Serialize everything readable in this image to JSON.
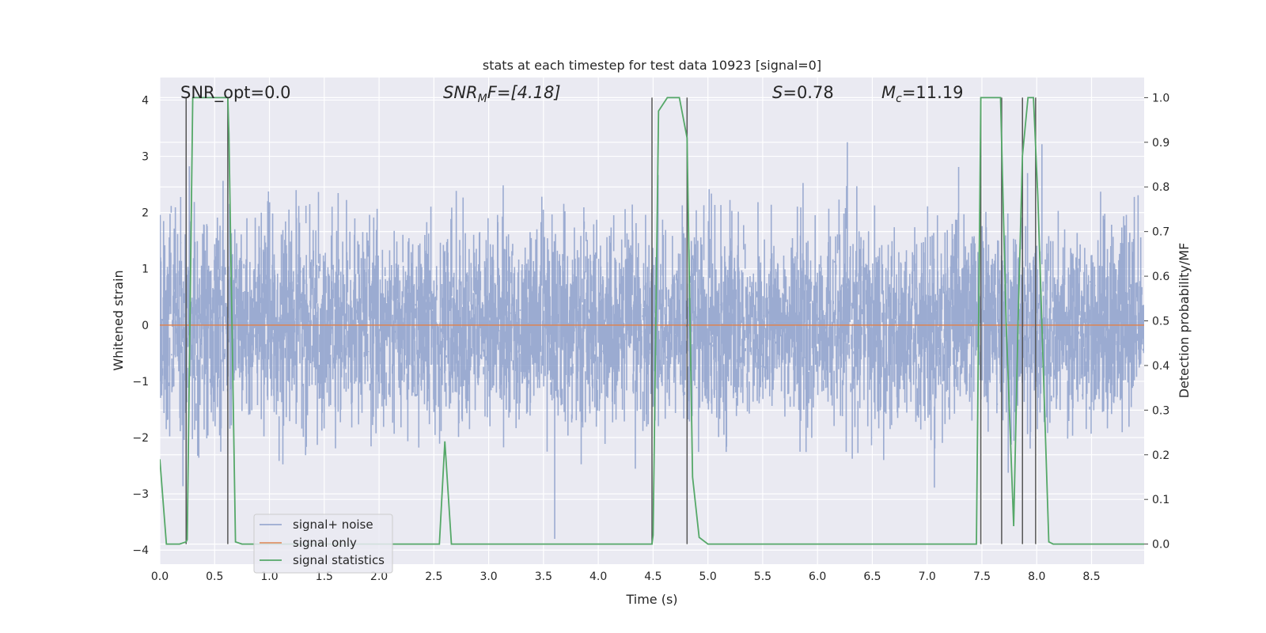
{
  "chart_data": {
    "type": "line",
    "title": "stats at each timestep for test data 10923 [signal=0]",
    "xlabel": "Time (s)",
    "ylabel": "Whitened strain",
    "ylabel_right": "Detection probability/MF",
    "xlim": [
      0.0,
      8.98
    ],
    "ylim": [
      -4.25,
      4.4
    ],
    "ylim_right": [
      -0.045,
      1.045
    ],
    "x_ticks": [
      "0.0",
      "0.5",
      "1.0",
      "1.5",
      "2.0",
      "2.5",
      "3.0",
      "3.5",
      "4.0",
      "4.5",
      "5.0",
      "5.5",
      "6.0",
      "6.5",
      "7.0",
      "7.5",
      "8.0",
      "8.5"
    ],
    "y_ticks": [
      "4",
      "3",
      "2",
      "1",
      "0",
      "−1",
      "−2",
      "−3",
      "−4"
    ],
    "y_right_ticks": [
      "1.0",
      "0.9",
      "0.8",
      "0.7",
      "0.6",
      "0.5",
      "0.4",
      "0.3",
      "0.2",
      "0.1",
      "0.0"
    ],
    "annotations": {
      "snr_opt": "SNR_opt=0.0",
      "snr_mf_label": "SNR",
      "snr_mf_sub": "M",
      "snr_mf_rest": "F=[4.18]",
      "s_label": "S",
      "s_rest": "=0.78",
      "mc_label": "M",
      "mc_sub": "c",
      "mc_rest": "=11.19"
    },
    "legend": {
      "position": "lower-left",
      "entries": [
        "signal+ noise",
        "signal only",
        "signal statistics"
      ]
    },
    "colors": {
      "noise": "#8da0cb",
      "signal": "#dd8452",
      "stats": "#55a868",
      "event_lines": "#555555",
      "plot_bg": "#eaeaf2",
      "grid": "#ffffff"
    },
    "series": [
      {
        "name": "signal+ noise",
        "description": "dense whitened noise band",
        "noise_sigma": 0.85,
        "range_min": -3.8,
        "range_max": 3.5
      },
      {
        "name": "signal only",
        "x": [
          0.0,
          8.98
        ],
        "y": [
          0.0,
          0.0
        ]
      },
      {
        "name": "signal statistics",
        "x": [
          0.0,
          0.06,
          0.18,
          0.24,
          0.25,
          0.3,
          0.62,
          0.63,
          0.69,
          0.75,
          1.2,
          2.0,
          2.4,
          2.55,
          2.6,
          2.66,
          3.0,
          4.0,
          4.49,
          4.5,
          4.55,
          4.63,
          4.74,
          4.81,
          4.86,
          4.92,
          5.0,
          6.0,
          7.0,
          7.45,
          7.49,
          7.55,
          7.67,
          7.72,
          7.79,
          7.83,
          7.87,
          7.92,
          7.97,
          8.01,
          8.11,
          8.15,
          8.5,
          8.98
        ],
        "y": [
          0.19,
          0.0,
          0.0,
          0.005,
          0.01,
          1.0,
          1.0,
          0.92,
          0.005,
          0.0,
          0.0,
          0.0,
          0.0,
          0.0,
          0.23,
          0.0,
          0.0,
          0.0,
          0.0,
          0.02,
          0.97,
          1.0,
          1.0,
          0.91,
          0.15,
          0.015,
          0.0,
          0.0,
          0.0,
          0.0,
          1.0,
          1.0,
          1.0,
          0.5,
          0.04,
          0.5,
          0.87,
          1.0,
          1.0,
          0.78,
          0.005,
          0.0,
          0.0,
          0.0
        ]
      }
    ],
    "event_markers": {
      "x": [
        0.24,
        0.62,
        4.49,
        4.81,
        7.49,
        7.68,
        7.87,
        7.99
      ]
    }
  }
}
